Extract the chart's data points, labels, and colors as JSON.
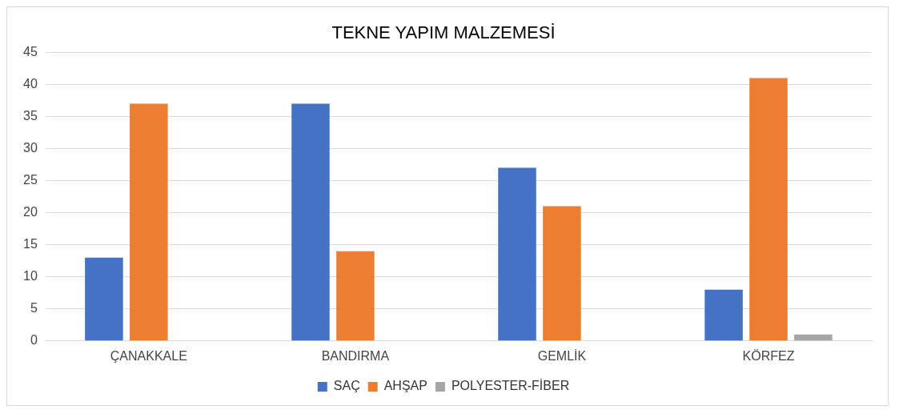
{
  "chart_data": {
    "type": "bar",
    "title": "TEKNE YAPIM MALZEMESİ",
    "categories": [
      "ÇANAKKALE",
      "BANDIRMA",
      "GEMLİK",
      "KÖRFEZ"
    ],
    "series": [
      {
        "name": "SAÇ",
        "color": "#4472c4",
        "values": [
          13,
          37,
          27,
          8
        ]
      },
      {
        "name": "AHŞAP",
        "color": "#ed7d31",
        "values": [
          37,
          14,
          21,
          41
        ]
      },
      {
        "name": "POLYESTER-FİBER",
        "color": "#a5a5a5",
        "values": [
          0,
          0,
          0,
          1
        ]
      }
    ],
    "ylim": [
      0,
      45
    ],
    "yticks": [
      0,
      5,
      10,
      15,
      20,
      25,
      30,
      35,
      40,
      45
    ],
    "grid": "y",
    "legend": "bottom"
  }
}
